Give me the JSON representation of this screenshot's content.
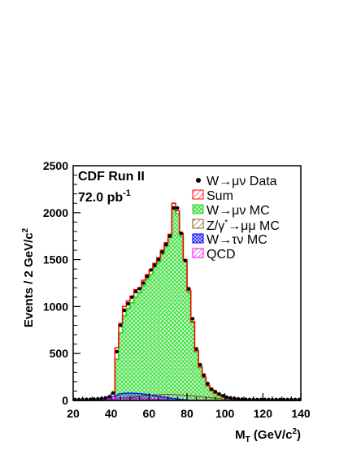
{
  "chart_data": {
    "type": "bar",
    "xlabel": "M_T (GeV/c^2)",
    "ylabel": "Events / 2 GeV/c^2",
    "xlim": [
      20,
      140
    ],
    "ylim": [
      0,
      2500
    ],
    "xticks": [
      20,
      40,
      60,
      80,
      100,
      120,
      140
    ],
    "yticks": [
      0,
      500,
      1000,
      1500,
      2000,
      2500
    ],
    "annotations": [
      "CDF Run II",
      "72.0 pb^-1"
    ],
    "legend_position": "top-right",
    "legend": [
      {
        "label": "W→μν Data",
        "marker": "dot",
        "color": "#000000"
      },
      {
        "label": "Sum",
        "marker": "hatch-box",
        "color": "#ff0000"
      },
      {
        "label": "W→μν MC",
        "marker": "crosshatch-box",
        "color": "#22dd22"
      },
      {
        "label": "Z/γ*→μμ MC",
        "marker": "hatch-box",
        "color": "#8b5a2b"
      },
      {
        "label": "W→τν MC",
        "marker": "crosshatch-box",
        "color": "#0000ff"
      },
      {
        "label": "QCD",
        "marker": "hatch-box",
        "color": "#ee00ee"
      }
    ],
    "bin_edges_start": 20,
    "bin_width": 2,
    "series": [
      {
        "name": "W→μν Data",
        "style": "points",
        "color": "#000000",
        "values": [
          10,
          10,
          10,
          12,
          12,
          15,
          18,
          22,
          28,
          40,
          80,
          520,
          800,
          960,
          1030,
          1100,
          1160,
          1190,
          1250,
          1320,
          1390,
          1440,
          1500,
          1580,
          1660,
          1750,
          2050,
          2050,
          1780,
          1490,
          1190,
          870,
          550,
          380,
          270,
          180,
          120,
          95,
          70,
          50,
          35,
          28,
          22,
          18,
          14,
          12,
          10,
          10,
          10,
          10,
          10,
          10,
          10,
          10,
          10,
          10,
          10,
          10,
          10,
          10
        ]
      },
      {
        "name": "Sum",
        "style": "hist-outline",
        "color": "#ff0000",
        "values": [
          0,
          0,
          0,
          0,
          0,
          0,
          0,
          0,
          0,
          0,
          0,
          560,
          820,
          1000,
          1060,
          1110,
          1180,
          1200,
          1280,
          1340,
          1390,
          1460,
          1520,
          1600,
          1680,
          1770,
          2100,
          2020,
          1780,
          1500,
          1170,
          840,
          530,
          360,
          250,
          160,
          110,
          80,
          60,
          40,
          30,
          20,
          15,
          12,
          10,
          8,
          6,
          5,
          4,
          3,
          2,
          2,
          1,
          1,
          1,
          1,
          0,
          0,
          0,
          0
        ]
      },
      {
        "name": "W→μν MC",
        "style": "hist-fill",
        "color": "#22dd22",
        "values": [
          0,
          0,
          0,
          0,
          0,
          0,
          0,
          0,
          0,
          0,
          0,
          440,
          720,
          900,
          980,
          1040,
          1100,
          1150,
          1220,
          1290,
          1340,
          1420,
          1470,
          1560,
          1640,
          1740,
          2060,
          1990,
          1750,
          1480,
          1150,
          830,
          520,
          350,
          240,
          150,
          100,
          70,
          50,
          35,
          25,
          18,
          13,
          10,
          8,
          6,
          5,
          4,
          3,
          2,
          2,
          1,
          1,
          1,
          1,
          0,
          0,
          0,
          0,
          0
        ]
      },
      {
        "name": "Z/γ*→μμ MC",
        "style": "hist-line",
        "color": "#8b5a2b",
        "values": [
          0,
          0,
          0,
          0,
          0,
          2,
          4,
          6,
          8,
          12,
          16,
          20,
          24,
          28,
          32,
          36,
          40,
          44,
          48,
          52,
          56,
          60,
          62,
          64,
          64,
          64,
          62,
          60,
          58,
          55,
          52,
          48,
          44,
          40,
          36,
          32,
          28,
          24,
          20,
          17,
          14,
          11,
          9,
          7,
          5,
          4,
          3,
          2,
          2,
          1,
          1,
          1,
          0,
          0,
          0,
          0,
          0,
          0,
          0,
          0
        ]
      },
      {
        "name": "W→τν MC",
        "style": "hist-line",
        "color": "#0000ff",
        "values": [
          0,
          0,
          0,
          0,
          2,
          4,
          8,
          14,
          22,
          32,
          44,
          58,
          70,
          76,
          78,
          78,
          76,
          72,
          68,
          62,
          56,
          50,
          44,
          38,
          32,
          26,
          20,
          15,
          11,
          8,
          5,
          3,
          2,
          1,
          1,
          0,
          0,
          0,
          0,
          0,
          0,
          0,
          0,
          0,
          0,
          0,
          0,
          0,
          0,
          0,
          0,
          0,
          0,
          0,
          0,
          0,
          0,
          0,
          0,
          0
        ]
      },
      {
        "name": "QCD",
        "style": "hist-line",
        "color": "#ee00ee",
        "values": [
          0,
          0,
          0,
          0,
          0,
          2,
          4,
          6,
          10,
          14,
          18,
          22,
          25,
          26,
          26,
          25,
          24,
          22,
          20,
          18,
          16,
          14,
          12,
          10,
          8,
          6,
          5,
          4,
          3,
          2,
          2,
          1,
          1,
          1,
          0,
          0,
          0,
          0,
          0,
          0,
          0,
          0,
          0,
          0,
          0,
          0,
          0,
          0,
          0,
          0,
          0,
          0,
          0,
          0,
          0,
          0,
          0,
          0,
          0,
          0
        ]
      }
    ]
  }
}
